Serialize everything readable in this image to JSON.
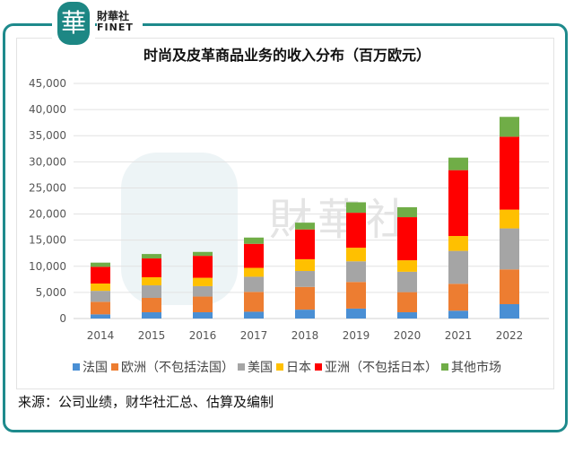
{
  "logo": {
    "cn": "財華社",
    "en": "FINET",
    "mark": "華"
  },
  "chart_data": {
    "type": "bar",
    "stacked": true,
    "title": "时尚及皮革商品业务的收入分布（百万欧元）",
    "xlabel": "",
    "ylabel": "",
    "ylim": [
      0,
      45000
    ],
    "yticks": [
      "0",
      "5,000",
      "10,000",
      "15,000",
      "20,000",
      "25,000",
      "30,000",
      "35,000",
      "40,000",
      "45,000"
    ],
    "grid": true,
    "legend_position": "bottom",
    "categories": [
      "2014",
      "2015",
      "2016",
      "2017",
      "2018",
      "2019",
      "2020",
      "2021",
      "2022"
    ],
    "series": [
      {
        "name": "法国",
        "color": "#4a8fd4",
        "values": [
          800,
          1200,
          1200,
          1300,
          1700,
          1900,
          1200,
          1500,
          2750
        ]
      },
      {
        "name": "欧洲（不包括法国）",
        "color": "#ed7d31",
        "values": [
          2400,
          2750,
          3000,
          3800,
          4350,
          5100,
          3850,
          5150,
          6650
        ]
      },
      {
        "name": "美国",
        "color": "#a5a5a5",
        "values": [
          2100,
          2400,
          2000,
          2900,
          3050,
          3950,
          3900,
          6300,
          7850
        ]
      },
      {
        "name": "日本",
        "color": "#ffc000",
        "values": [
          1400,
          1550,
          1600,
          1700,
          2250,
          2600,
          2200,
          2850,
          3600
        ]
      },
      {
        "name": "亚洲（不包括日本）",
        "color": "#ff0000",
        "values": [
          3200,
          3600,
          4200,
          4600,
          5700,
          6700,
          8250,
          12600,
          13950
        ]
      },
      {
        "name": "其他市场",
        "color": "#70ad47",
        "values": [
          800,
          850,
          750,
          1200,
          1300,
          2000,
          1900,
          2400,
          3800
        ]
      }
    ]
  },
  "source": "来源：公司业绩，财华社汇总、估算及编制"
}
